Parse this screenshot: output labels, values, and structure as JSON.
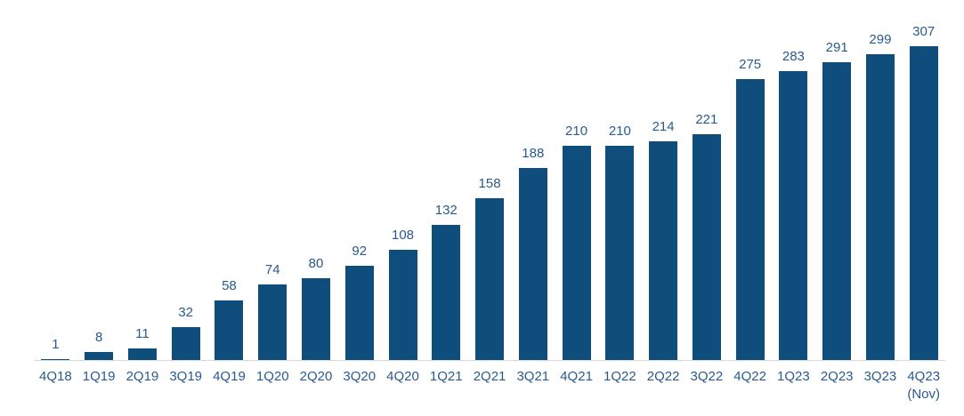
{
  "chart_data": {
    "type": "bar",
    "categories": [
      "4Q18",
      "1Q19",
      "2Q19",
      "3Q19",
      "4Q19",
      "1Q20",
      "2Q20",
      "3Q20",
      "4Q20",
      "1Q21",
      "2Q21",
      "3Q21",
      "4Q21",
      "1Q22",
      "2Q22",
      "3Q22",
      "4Q22",
      "1Q23",
      "2Q23",
      "3Q23",
      "4Q23\n(Nov)"
    ],
    "values": [
      1,
      8,
      11,
      32,
      58,
      74,
      80,
      92,
      108,
      132,
      158,
      188,
      210,
      210,
      214,
      221,
      275,
      283,
      291,
      299,
      307
    ],
    "data_labels": [
      1,
      8,
      11,
      32,
      58,
      74,
      80,
      92,
      108,
      132,
      158,
      188,
      210,
      210,
      214,
      221,
      275,
      283,
      291,
      299,
      307
    ],
    "xlabel": "",
    "ylabel": "",
    "ylim": [
      0,
      307
    ],
    "grid": false,
    "legend": false,
    "y_axis_visible": false,
    "colors": {
      "bar": "#0F4D7D",
      "label_text": "#2A5A8C",
      "axis_line": "#D9D9D9",
      "background": "#FFFFFF"
    }
  }
}
